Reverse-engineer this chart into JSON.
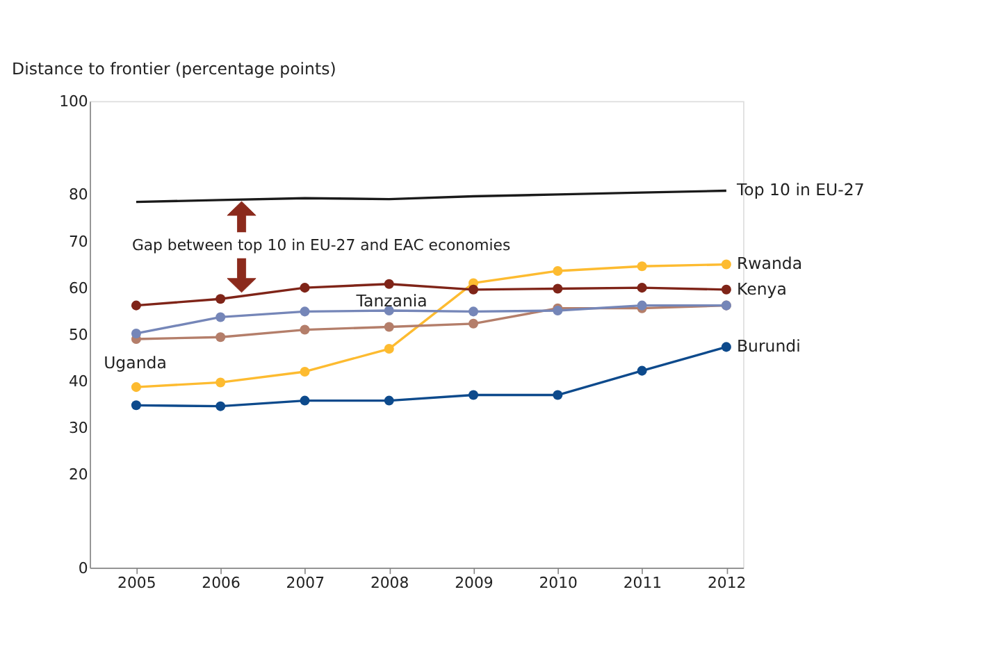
{
  "chart_data": {
    "type": "line",
    "ylabel": "Distance to frontier (percentage points)",
    "x": [
      2005,
      2006,
      2007,
      2008,
      2009,
      2010,
      2011,
      2012
    ],
    "xlim": [
      2004.45,
      2012.2
    ],
    "xticks": [
      2005,
      2006,
      2007,
      2008,
      2009,
      2010,
      2011,
      2012
    ],
    "ylim": [
      0,
      100
    ],
    "yticks": [
      0,
      20,
      30,
      40,
      50,
      60,
      70,
      80,
      100
    ],
    "grid": false,
    "marker": "circle",
    "line_style": "solid",
    "annotations": [
      {
        "text": "Gap between top 10 in EU-27 and EAC economies",
        "x": 2006.25,
        "y": 79.0
      }
    ],
    "series": [
      {
        "name": "Top 10 in EU-27",
        "color": "#1a1a1a",
        "marker": "none",
        "values": [
          78.4,
          78.8,
          79.2,
          79.0,
          79.6,
          80.0,
          80.4,
          80.8
        ]
      },
      {
        "name": "Rwanda",
        "color": "#fdbb30",
        "values": [
          38.7,
          39.7,
          42.0,
          46.9,
          61.0,
          63.6,
          64.6,
          65.0
        ]
      },
      {
        "name": "Kenya",
        "color": "#7f2418",
        "values": [
          56.2,
          57.6,
          60.0,
          60.8,
          59.6,
          59.8,
          60.0,
          59.6
        ]
      },
      {
        "name": "Burundi",
        "color": "#0d4a8c",
        "values": [
          34.8,
          34.6,
          35.8,
          35.8,
          37.0,
          37.0,
          42.2,
          47.3
        ]
      },
      {
        "name": "Uganda",
        "color": "#b47e6a",
        "values": [
          49.0,
          49.4,
          51.0,
          51.6,
          52.3,
          55.6,
          55.6,
          56.2
        ]
      },
      {
        "name": "Tanzania",
        "color": "#7586b8",
        "values": [
          50.2,
          53.7,
          54.9,
          55.1,
          54.9,
          55.1,
          56.2,
          56.2
        ]
      }
    ]
  }
}
